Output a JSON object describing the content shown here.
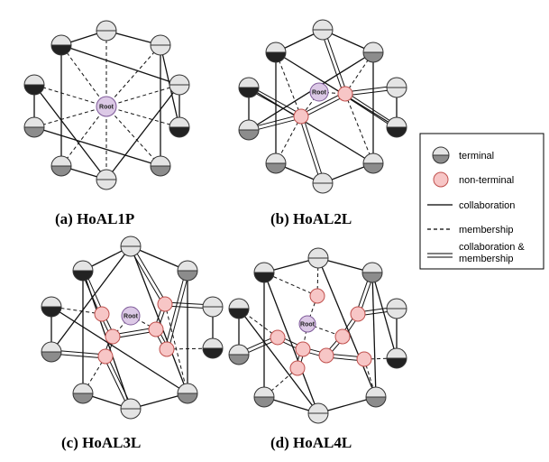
{
  "captions": {
    "a": "(a) HoAL1P",
    "b": "(b) HoAL2L",
    "c": "(c) HoAL3L",
    "d": "(d) HoAL4L"
  },
  "root_label": "Root",
  "legend": {
    "terminal": "terminal",
    "non_terminal": "non-terminal",
    "collaboration": "collaboration",
    "membership": "membership",
    "collab_membership_line1": "collaboration &",
    "collab_membership_line2": "membership"
  },
  "colors": {
    "non_terminal_fill": "#f7c6c6",
    "non_terminal_stroke": "#c0504d",
    "root_fill": "#dcc9e6",
    "root_stroke": "#7e5a99",
    "terminal_light": "#e4e4e4",
    "terminal_mid": "#8c8c8c",
    "terminal_dark": "#222222"
  }
}
